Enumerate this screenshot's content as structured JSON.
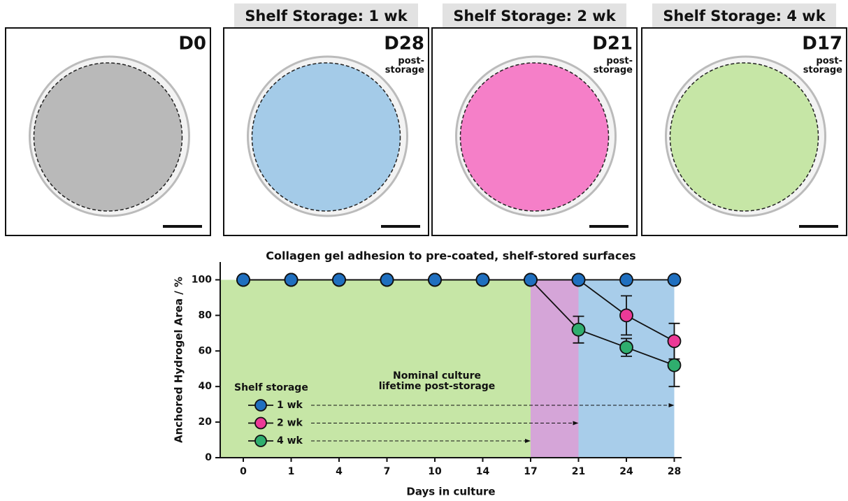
{
  "panels": [
    {
      "label": "D0",
      "color": "#b9b9b9"
    },
    {
      "header": "Shelf Storage: 1 wk",
      "label": "D28",
      "sublabel": "post-storage",
      "color": "#a4cbe8"
    },
    {
      "header": "Shelf Storage: 2 wk",
      "label": "D21",
      "sublabel": "post-storage",
      "color": "#f57fc8"
    },
    {
      "header": "Shelf Storage: 4 wk",
      "label": "D17",
      "sublabel": "post-storage",
      "color": "#c6e6a6"
    }
  ],
  "chart_data": {
    "type": "line",
    "title": "Collagen gel adhesion to pre-coated, shelf-stored surfaces",
    "x_label": "Days in culture",
    "y_label": "Anchored Hydrogel Area / %",
    "categories": [
      "0",
      "1",
      "4",
      "7",
      "10",
      "14",
      "17",
      "21",
      "24",
      "28"
    ],
    "ylim": [
      0,
      110
    ],
    "yticks": [
      0,
      20,
      40,
      60,
      80,
      100
    ],
    "regions": [
      {
        "start": "0",
        "end": "17",
        "color": "#c6e6a6"
      },
      {
        "start": "17",
        "end": "21",
        "color": "#d5a5d8"
      },
      {
        "start": "21",
        "end": "28",
        "color": "#a8cdea"
      }
    ],
    "legend_title": "Shelf storage",
    "annotation": [
      "Nominal culture",
      "lifetime post-storage"
    ],
    "series": [
      {
        "name": "4 wk",
        "color": "#2fae6e",
        "arrow_to": "17",
        "values": [
          100,
          100,
          100,
          100,
          100,
          100,
          100,
          72,
          62,
          52
        ],
        "errors": [
          null,
          null,
          null,
          null,
          null,
          null,
          null,
          7.5,
          5,
          12
        ]
      },
      {
        "name": "2 wk",
        "color": "#ec3a97",
        "arrow_to": "21",
        "values": [
          100,
          100,
          100,
          100,
          100,
          100,
          100,
          100,
          80,
          65.5
        ],
        "errors": [
          null,
          null,
          null,
          null,
          null,
          null,
          null,
          null,
          11,
          10
        ]
      },
      {
        "name": "1 wk",
        "color": "#1f6fbf",
        "arrow_to": "28",
        "values": [
          100,
          100,
          100,
          100,
          100,
          100,
          100,
          100,
          100,
          100
        ],
        "errors": [
          null,
          null,
          null,
          null,
          null,
          null,
          null,
          null,
          null,
          null
        ]
      }
    ]
  }
}
